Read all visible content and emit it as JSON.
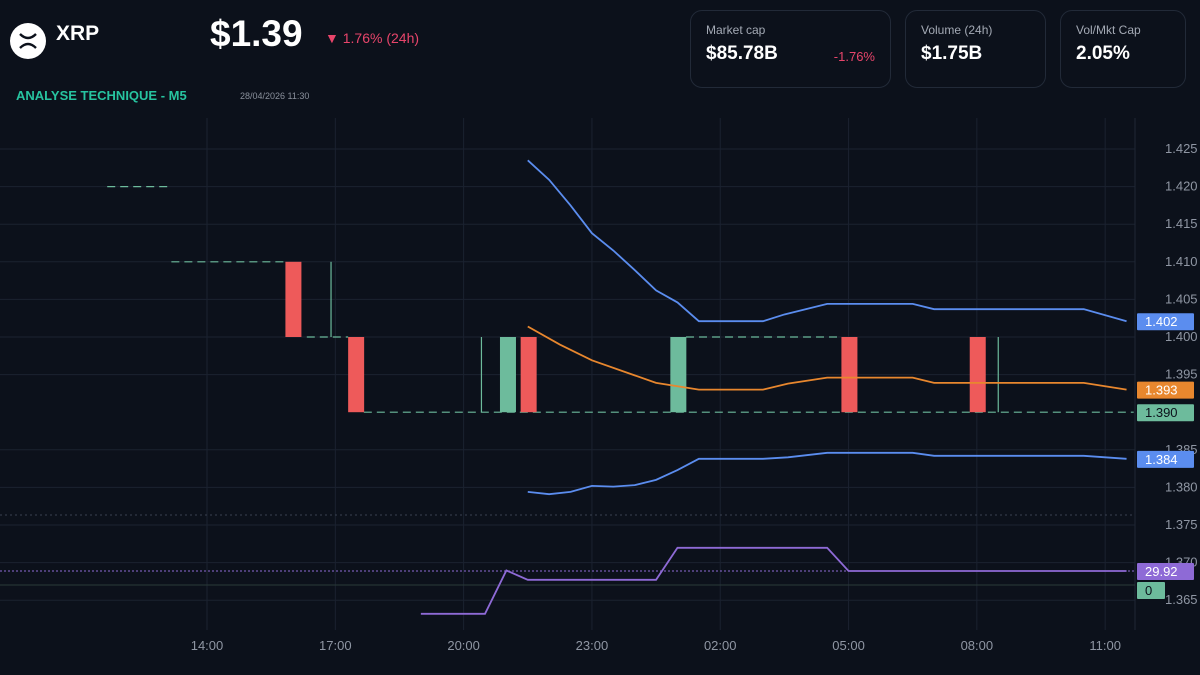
{
  "header": {
    "symbol": "XRP",
    "price": "$1.39",
    "change": "▼ 1.76% (24h)",
    "subtitle": "ANALYSE TECHNIQUE - M5",
    "timestamp": "28/04/2026 11:30"
  },
  "stats": [
    {
      "label": "Market cap",
      "value": "$85.78B",
      "change": "-1.76%"
    },
    {
      "label": "Volume (24h)",
      "value": "$1.75B"
    },
    {
      "label": "Vol/Mkt Cap",
      "value": "2.05%"
    }
  ],
  "colors": {
    "background": "#0c111b",
    "up": "#6dbb9c",
    "down": "#ee5a5a",
    "band": "#5b8def",
    "basis": "#e8872e",
    "rsi": "#8e6ad6",
    "accent": "#27c4a0",
    "negative": "#e8456b"
  },
  "chart_data": {
    "type": "candlestick",
    "price_ticks": [
      "1.425",
      "1.420",
      "1.415",
      "1.410",
      "1.405",
      "1.400",
      "1.395",
      "1.385",
      "1.380",
      "1.375",
      "1.370",
      "1.365"
    ],
    "time_ticks": [
      "14:00",
      "17:00",
      "20:00",
      "23:00",
      "02:00",
      "05:00",
      "08:00",
      "11:00"
    ],
    "ylim": [
      1.3617,
      1.4288
    ],
    "candles": [
      {
        "time": "27/04 15:50",
        "open": 1.41,
        "close": 1.4
      },
      {
        "time": "27/04 17:18",
        "open": 1.4,
        "close": 1.39
      },
      {
        "time": "27/04 20:51",
        "open": 1.39,
        "close": 1.4
      },
      {
        "time": "27/04 21:20",
        "open": 1.4,
        "close": 1.39
      },
      {
        "time": "28/04 00:50",
        "open": 1.39,
        "close": 1.4
      },
      {
        "time": "28/04 04:50",
        "open": 1.4,
        "close": 1.39
      },
      {
        "time": "28/04 07:50",
        "open": 1.4,
        "close": 1.39
      }
    ],
    "wicks": [
      {
        "time": "27/04 16:54",
        "high": 1.41,
        "low": 1.4
      },
      {
        "time": "27/04 20:25",
        "high": 1.4,
        "low": 1.39
      },
      {
        "time": "28/04 08:30",
        "high": 1.4,
        "low": 1.39
      }
    ],
    "levels": [
      {
        "from": "27/04 11:40",
        "to": "27/04 13:05",
        "price": 1.42
      },
      {
        "from": "27/04 13:10",
        "to": "27/04 15:50",
        "price": 1.41
      },
      {
        "from": "27/04 16:20",
        "to": "27/04 17:18",
        "price": 1.4
      },
      {
        "from": "28/04 01:12",
        "to": "28/04 04:50",
        "price": 1.4
      },
      {
        "from": "27/04 17:40",
        "to": "28/04 11:40",
        "price": 1.39
      }
    ],
    "series": [
      {
        "key": "upper",
        "color": "#5b8def",
        "last": "1.402",
        "points": [
          [
            "27/04 21:30",
            1.4235
          ],
          [
            "27/04 22:00",
            1.4209
          ],
          [
            "27/04 22:30",
            1.4175
          ],
          [
            "27/04 23:00",
            1.4138
          ],
          [
            "27/04 23:30",
            1.4115
          ],
          [
            "28/04 00:00",
            1.4089
          ],
          [
            "28/04 00:30",
            1.4062
          ],
          [
            "28/04 01:00",
            1.4046
          ],
          [
            "28/04 01:30",
            1.4021
          ],
          [
            "28/04 03:00",
            1.4021
          ],
          [
            "28/04 03:30",
            1.403
          ],
          [
            "28/04 04:30",
            1.4044
          ],
          [
            "28/04 06:30",
            1.4044
          ],
          [
            "28/04 07:00",
            1.4037
          ],
          [
            "28/04 10:30",
            1.4037
          ],
          [
            "28/04 11:30",
            1.4021
          ]
        ]
      },
      {
        "key": "basis",
        "color": "#e8872e",
        "last": "1.393",
        "points": [
          [
            "27/04 21:30",
            1.4014
          ],
          [
            "27/04 22:15",
            1.399
          ],
          [
            "27/04 23:00",
            1.3969
          ],
          [
            "28/04 00:00",
            1.3949
          ],
          [
            "28/04 00:30",
            1.3939
          ],
          [
            "28/04 01:30",
            1.393
          ],
          [
            "28/04 03:00",
            1.393
          ],
          [
            "28/04 03:35",
            1.3938
          ],
          [
            "28/04 04:30",
            1.3946
          ],
          [
            "28/04 06:30",
            1.3946
          ],
          [
            "28/04 07:00",
            1.3939
          ],
          [
            "28/04 10:30",
            1.3939
          ],
          [
            "28/04 11:30",
            1.393
          ]
        ]
      },
      {
        "key": "lower",
        "color": "#5b8def",
        "last": "1.384",
        "points": [
          [
            "27/04 21:30",
            1.3794
          ],
          [
            "27/04 22:00",
            1.3791
          ],
          [
            "27/04 22:30",
            1.3794
          ],
          [
            "27/04 23:00",
            1.3802
          ],
          [
            "27/04 23:30",
            1.3801
          ],
          [
            "28/04 00:00",
            1.3803
          ],
          [
            "28/04 00:30",
            1.381
          ],
          [
            "28/04 01:00",
            1.3823
          ],
          [
            "28/04 01:30",
            1.3838
          ],
          [
            "28/04 03:00",
            1.3838
          ],
          [
            "28/04 03:35",
            1.384
          ],
          [
            "28/04 04:30",
            1.3846
          ],
          [
            "28/04 06:30",
            1.3846
          ],
          [
            "28/04 07:00",
            1.3842
          ],
          [
            "28/04 10:30",
            1.3842
          ],
          [
            "28/04 11:30",
            1.3838
          ]
        ]
      }
    ],
    "last_price_tag": "1.390",
    "rsi": {
      "last": "29.92",
      "zero_label": "0",
      "points": [
        [
          "27/04 19:00",
          23.5
        ],
        [
          "27/04 20:30",
          23.5
        ],
        [
          "27/04 21:00",
          30.0
        ],
        [
          "27/04 21:30",
          28.6
        ],
        [
          "28/04 00:30",
          28.6
        ],
        [
          "28/04 01:00",
          33.4
        ],
        [
          "28/04 04:30",
          33.4
        ],
        [
          "28/04 05:00",
          29.92
        ],
        [
          "28/04 11:30",
          29.92
        ]
      ]
    }
  }
}
